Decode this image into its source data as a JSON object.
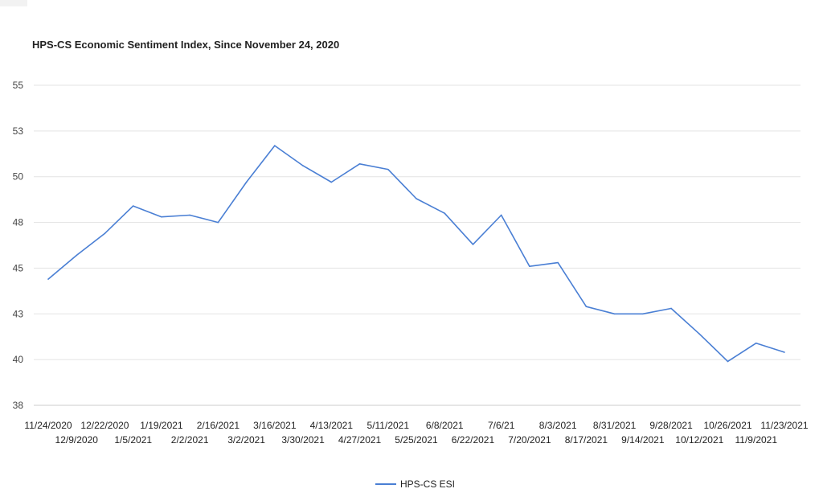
{
  "chart_data": {
    "type": "line",
    "title": "HPS-CS Economic Sentiment Index, Since November 24, 2020",
    "xlabel": "",
    "ylabel": "",
    "y_tick_labels": [
      "38",
      "40",
      "43",
      "45",
      "48",
      "50",
      "53",
      "55"
    ],
    "grid": true,
    "legend_position": "bottom",
    "line_color": "#4a7fd4",
    "categories": [
      "11/24/2020",
      "12/9/2020",
      "12/22/2020",
      "1/5/2021",
      "1/19/2021",
      "2/2/2021",
      "2/16/2021",
      "3/2/2021",
      "3/16/2021",
      "3/30/2021",
      "4/13/2021",
      "4/27/2021",
      "5/11/2021",
      "5/25/2021",
      "6/8/2021",
      "6/22/2021",
      "7/6/21",
      "7/20/2021",
      "8/3/2021",
      "8/17/2021",
      "8/31/2021",
      "9/14/2021",
      "9/28/2021",
      "10/12/2021",
      "10/26/2021",
      "11/9/2021",
      "11/23/2021"
    ],
    "series": [
      {
        "name": "HPS-CS ESI",
        "values": [
          44.4,
          45.7,
          46.9,
          48.4,
          47.8,
          47.9,
          47.5,
          49.7,
          51.7,
          50.6,
          49.7,
          50.7,
          50.4,
          48.8,
          48.0,
          46.3,
          47.9,
          45.1,
          45.3,
          42.9,
          42.5,
          42.5,
          42.8,
          41.4,
          39.9,
          40.9,
          40.4
        ]
      }
    ]
  }
}
